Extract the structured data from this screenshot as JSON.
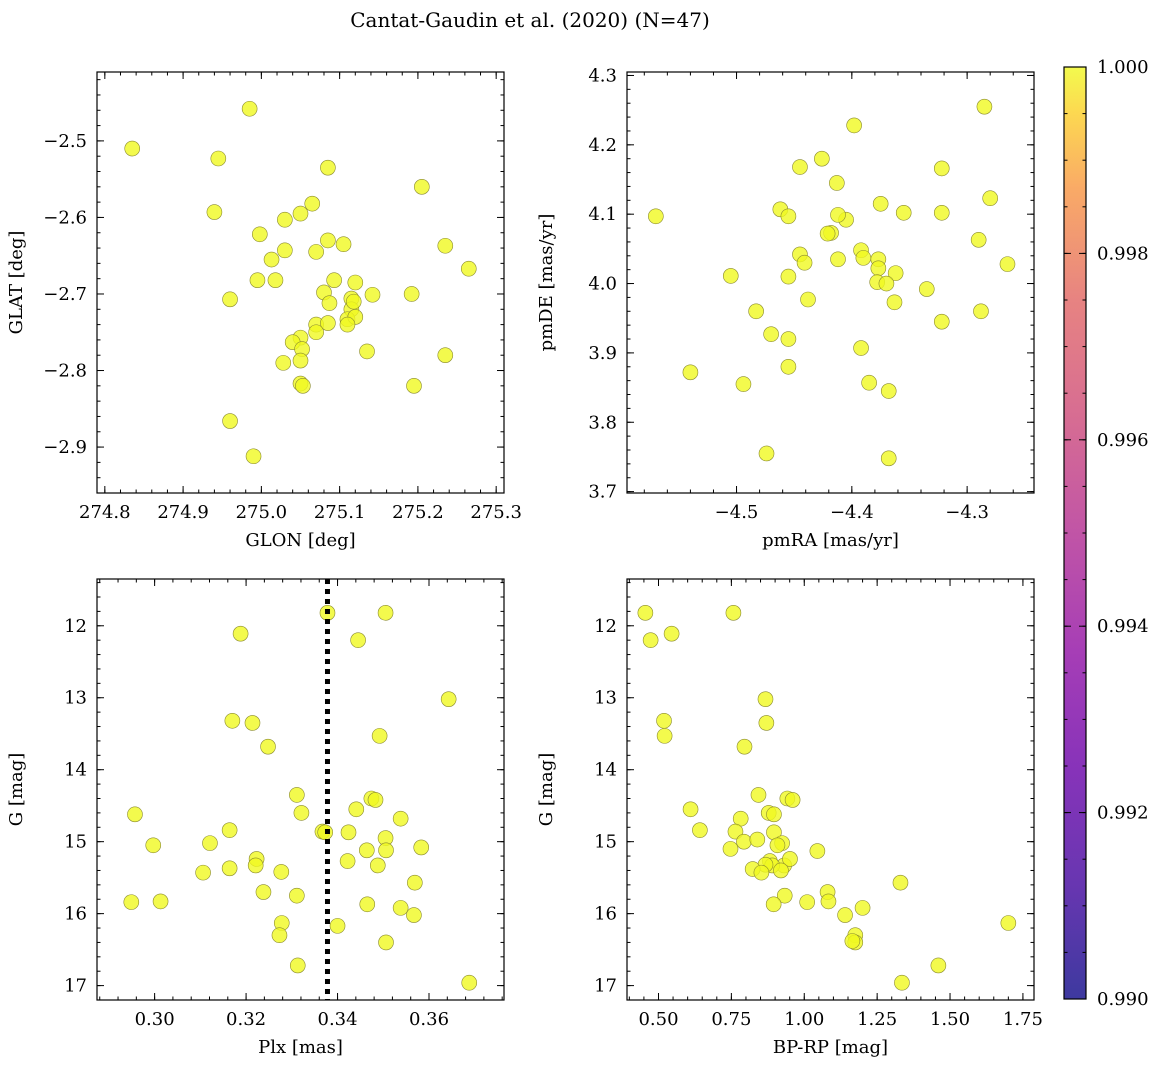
{
  "figure_title": "Cantat-Gaudin et al. (2020) (N=47)",
  "point_color": "#f0f921",
  "colorbar": {
    "ticks": [
      "0.990",
      "0.992",
      "0.994",
      "0.996",
      "0.998",
      "1.000"
    ],
    "range": [
      0.99,
      1.0
    ],
    "colormap": "plasma"
  },
  "chart_data": [
    {
      "type": "scatter",
      "xlabel": "GLON [deg]",
      "ylabel": "GLAT [deg]",
      "xlim": [
        274.79,
        275.31
      ],
      "ylim": [
        -2.96,
        -2.41
      ],
      "yinvert": false,
      "xticks": [
        "274.8",
        "274.9",
        "275.0",
        "275.1",
        "275.2",
        "275.3"
      ],
      "yticks": [
        "−2.9",
        "−2.8",
        "−2.7",
        "−2.6",
        "−2.5"
      ],
      "x": [
        274.835,
        274.985,
        274.945,
        274.94,
        274.998,
        275.013,
        275.03,
        275.05,
        275.065,
        275.085,
        275.105,
        275.205,
        275.235,
        275.265,
        275.085,
        275.07,
        275.03,
        274.96,
        274.995,
        275.018,
        275.093,
        275.12,
        275.08,
        275.087,
        275.115,
        275.142,
        275.192,
        275.115,
        275.07,
        275.11,
        275.12,
        275.085,
        275.05,
        275.04,
        275.052,
        275.05,
        275.028,
        275.135,
        275.235,
        275.05,
        275.053,
        275.195,
        274.96,
        274.99,
        275.11,
        275.118,
        275.07
      ],
      "y": [
        -2.51,
        -2.458,
        -2.523,
        -2.593,
        -2.622,
        -2.655,
        -2.603,
        -2.595,
        -2.582,
        -2.535,
        -2.635,
        -2.56,
        -2.637,
        -2.667,
        -2.63,
        -2.645,
        -2.643,
        -2.707,
        -2.682,
        -2.682,
        -2.682,
        -2.685,
        -2.698,
        -2.712,
        -2.706,
        -2.701,
        -2.7,
        -2.72,
        -2.74,
        -2.733,
        -2.73,
        -2.738,
        -2.757,
        -2.763,
        -2.772,
        -2.787,
        -2.79,
        -2.775,
        -2.78,
        -2.817,
        -2.82,
        -2.82,
        -2.866,
        -2.912,
        -2.74,
        -2.71,
        -2.75
      ]
    },
    {
      "type": "scatter",
      "xlabel": "pmRA [mas/yr]",
      "ylabel": "pmDE [mas/yr]",
      "xlim": [
        -4.595,
        -4.242
      ],
      "ylim": [
        3.698,
        4.305
      ],
      "yinvert": false,
      "xticks": [
        "−4.5",
        "−4.4",
        "−4.3"
      ],
      "yticks": [
        "3.7",
        "3.8",
        "3.9",
        "4.0",
        "4.1",
        "4.2",
        "4.3"
      ],
      "x": [
        -4.57,
        -4.285,
        -4.398,
        -4.426,
        -4.445,
        -4.413,
        -4.322,
        -4.28,
        -4.462,
        -4.455,
        -4.375,
        -4.355,
        -4.322,
        -4.405,
        -4.412,
        -4.418,
        -4.421,
        -4.29,
        -4.392,
        -4.445,
        -4.441,
        -4.39,
        -4.412,
        -4.377,
        -4.265,
        -4.377,
        -4.455,
        -4.505,
        -4.362,
        -4.378,
        -4.37,
        -4.335,
        -4.438,
        -4.363,
        -4.483,
        -4.322,
        -4.288,
        -4.47,
        -4.455,
        -4.392,
        -4.54,
        -4.494,
        -4.455,
        -4.385,
        -4.368,
        -4.474,
        -4.368
      ],
      "y": [
        4.097,
        4.255,
        4.228,
        4.18,
        4.168,
        4.145,
        4.166,
        4.123,
        4.107,
        4.097,
        4.115,
        4.102,
        4.102,
        4.092,
        4.099,
        4.073,
        4.072,
        4.063,
        4.048,
        4.042,
        4.03,
        4.037,
        4.035,
        4.035,
        4.028,
        4.022,
        4.01,
        4.011,
        4.015,
        4.002,
        4.0,
        3.992,
        3.977,
        3.973,
        3.96,
        3.945,
        3.96,
        3.927,
        3.92,
        3.907,
        3.872,
        3.855,
        3.88,
        3.857,
        3.845,
        3.755,
        3.748
      ]
    },
    {
      "type": "scatter",
      "xlabel": "Plx [mas]",
      "ylabel": "G [mag]",
      "xlim": [
        0.2874,
        0.3764
      ],
      "ylim": [
        11.35,
        17.2
      ],
      "yinvert": true,
      "vline": 0.3378,
      "xticks": [
        "0.30",
        "0.32",
        "0.34",
        "0.36"
      ],
      "yticks": [
        "12",
        "13",
        "14",
        "15",
        "16",
        "17"
      ],
      "x": [
        0.3378,
        0.3505,
        0.3188,
        0.3445,
        0.3643,
        0.317,
        0.3214,
        0.3248,
        0.3492,
        0.3311,
        0.3474,
        0.3483,
        0.3441,
        0.3321,
        0.2957,
        0.3164,
        0.3538,
        0.3121,
        0.2997,
        0.3583,
        0.3424,
        0.3505,
        0.3506,
        0.3367,
        0.3373,
        0.3223,
        0.3464,
        0.3164,
        0.3221,
        0.3488,
        0.3277,
        0.3106,
        0.3569,
        0.3422,
        0.3238,
        0.3311,
        0.2949,
        0.3013,
        0.3465,
        0.3538,
        0.3567,
        0.34,
        0.3278,
        0.3273,
        0.3506,
        0.3313,
        0.3688
      ],
      "y": [
        11.82,
        11.82,
        12.11,
        12.2,
        13.02,
        13.32,
        13.35,
        13.68,
        13.53,
        14.35,
        14.4,
        14.42,
        14.55,
        14.6,
        14.62,
        14.84,
        14.68,
        15.02,
        15.05,
        15.08,
        14.87,
        14.95,
        15.12,
        14.86,
        14.87,
        15.24,
        15.12,
        15.37,
        15.33,
        15.33,
        15.42,
        15.43,
        15.57,
        15.27,
        15.7,
        15.75,
        15.84,
        15.83,
        15.87,
        15.92,
        16.02,
        16.17,
        16.13,
        16.3,
        16.4,
        16.72,
        16.96
      ]
    },
    {
      "type": "scatter",
      "xlabel": "BP-RP [mag]",
      "ylabel": "G [mag]",
      "xlim": [
        0.392,
        1.788
      ],
      "ylim": [
        11.35,
        17.2
      ],
      "yinvert": true,
      "xticks": [
        "0.50",
        "0.75",
        "1.00",
        "1.25",
        "1.50",
        "1.75"
      ],
      "yticks": [
        "12",
        "13",
        "14",
        "15",
        "16",
        "17"
      ],
      "x": [
        0.455,
        0.757,
        0.545,
        0.473,
        0.867,
        0.519,
        0.87,
        0.521,
        0.795,
        0.843,
        0.942,
        0.96,
        0.61,
        0.878,
        0.896,
        0.782,
        0.642,
        0.764,
        0.793,
        0.839,
        0.896,
        0.924,
        0.908,
        0.747,
        1.045,
        0.931,
        0.882,
        0.951,
        0.89,
        0.867,
        0.823,
        0.853,
        0.933,
        1.33,
        1.08,
        1.083,
        0.895,
        1.01,
        1.2,
        1.14,
        1.175,
        1.175,
        1.7,
        1.165,
        1.46,
        1.335,
        0.92
      ],
      "y": [
        11.82,
        11.82,
        12.11,
        12.2,
        13.02,
        13.32,
        13.35,
        13.53,
        13.68,
        14.35,
        14.4,
        14.42,
        14.55,
        14.6,
        14.62,
        14.68,
        14.84,
        14.86,
        15.0,
        14.97,
        14.87,
        15.02,
        15.05,
        15.1,
        15.13,
        15.33,
        15.27,
        15.24,
        15.33,
        15.32,
        15.38,
        15.43,
        15.75,
        15.57,
        15.7,
        15.83,
        15.87,
        15.84,
        15.92,
        16.02,
        16.3,
        16.4,
        16.13,
        16.38,
        16.72,
        16.96,
        15.4
      ]
    }
  ]
}
